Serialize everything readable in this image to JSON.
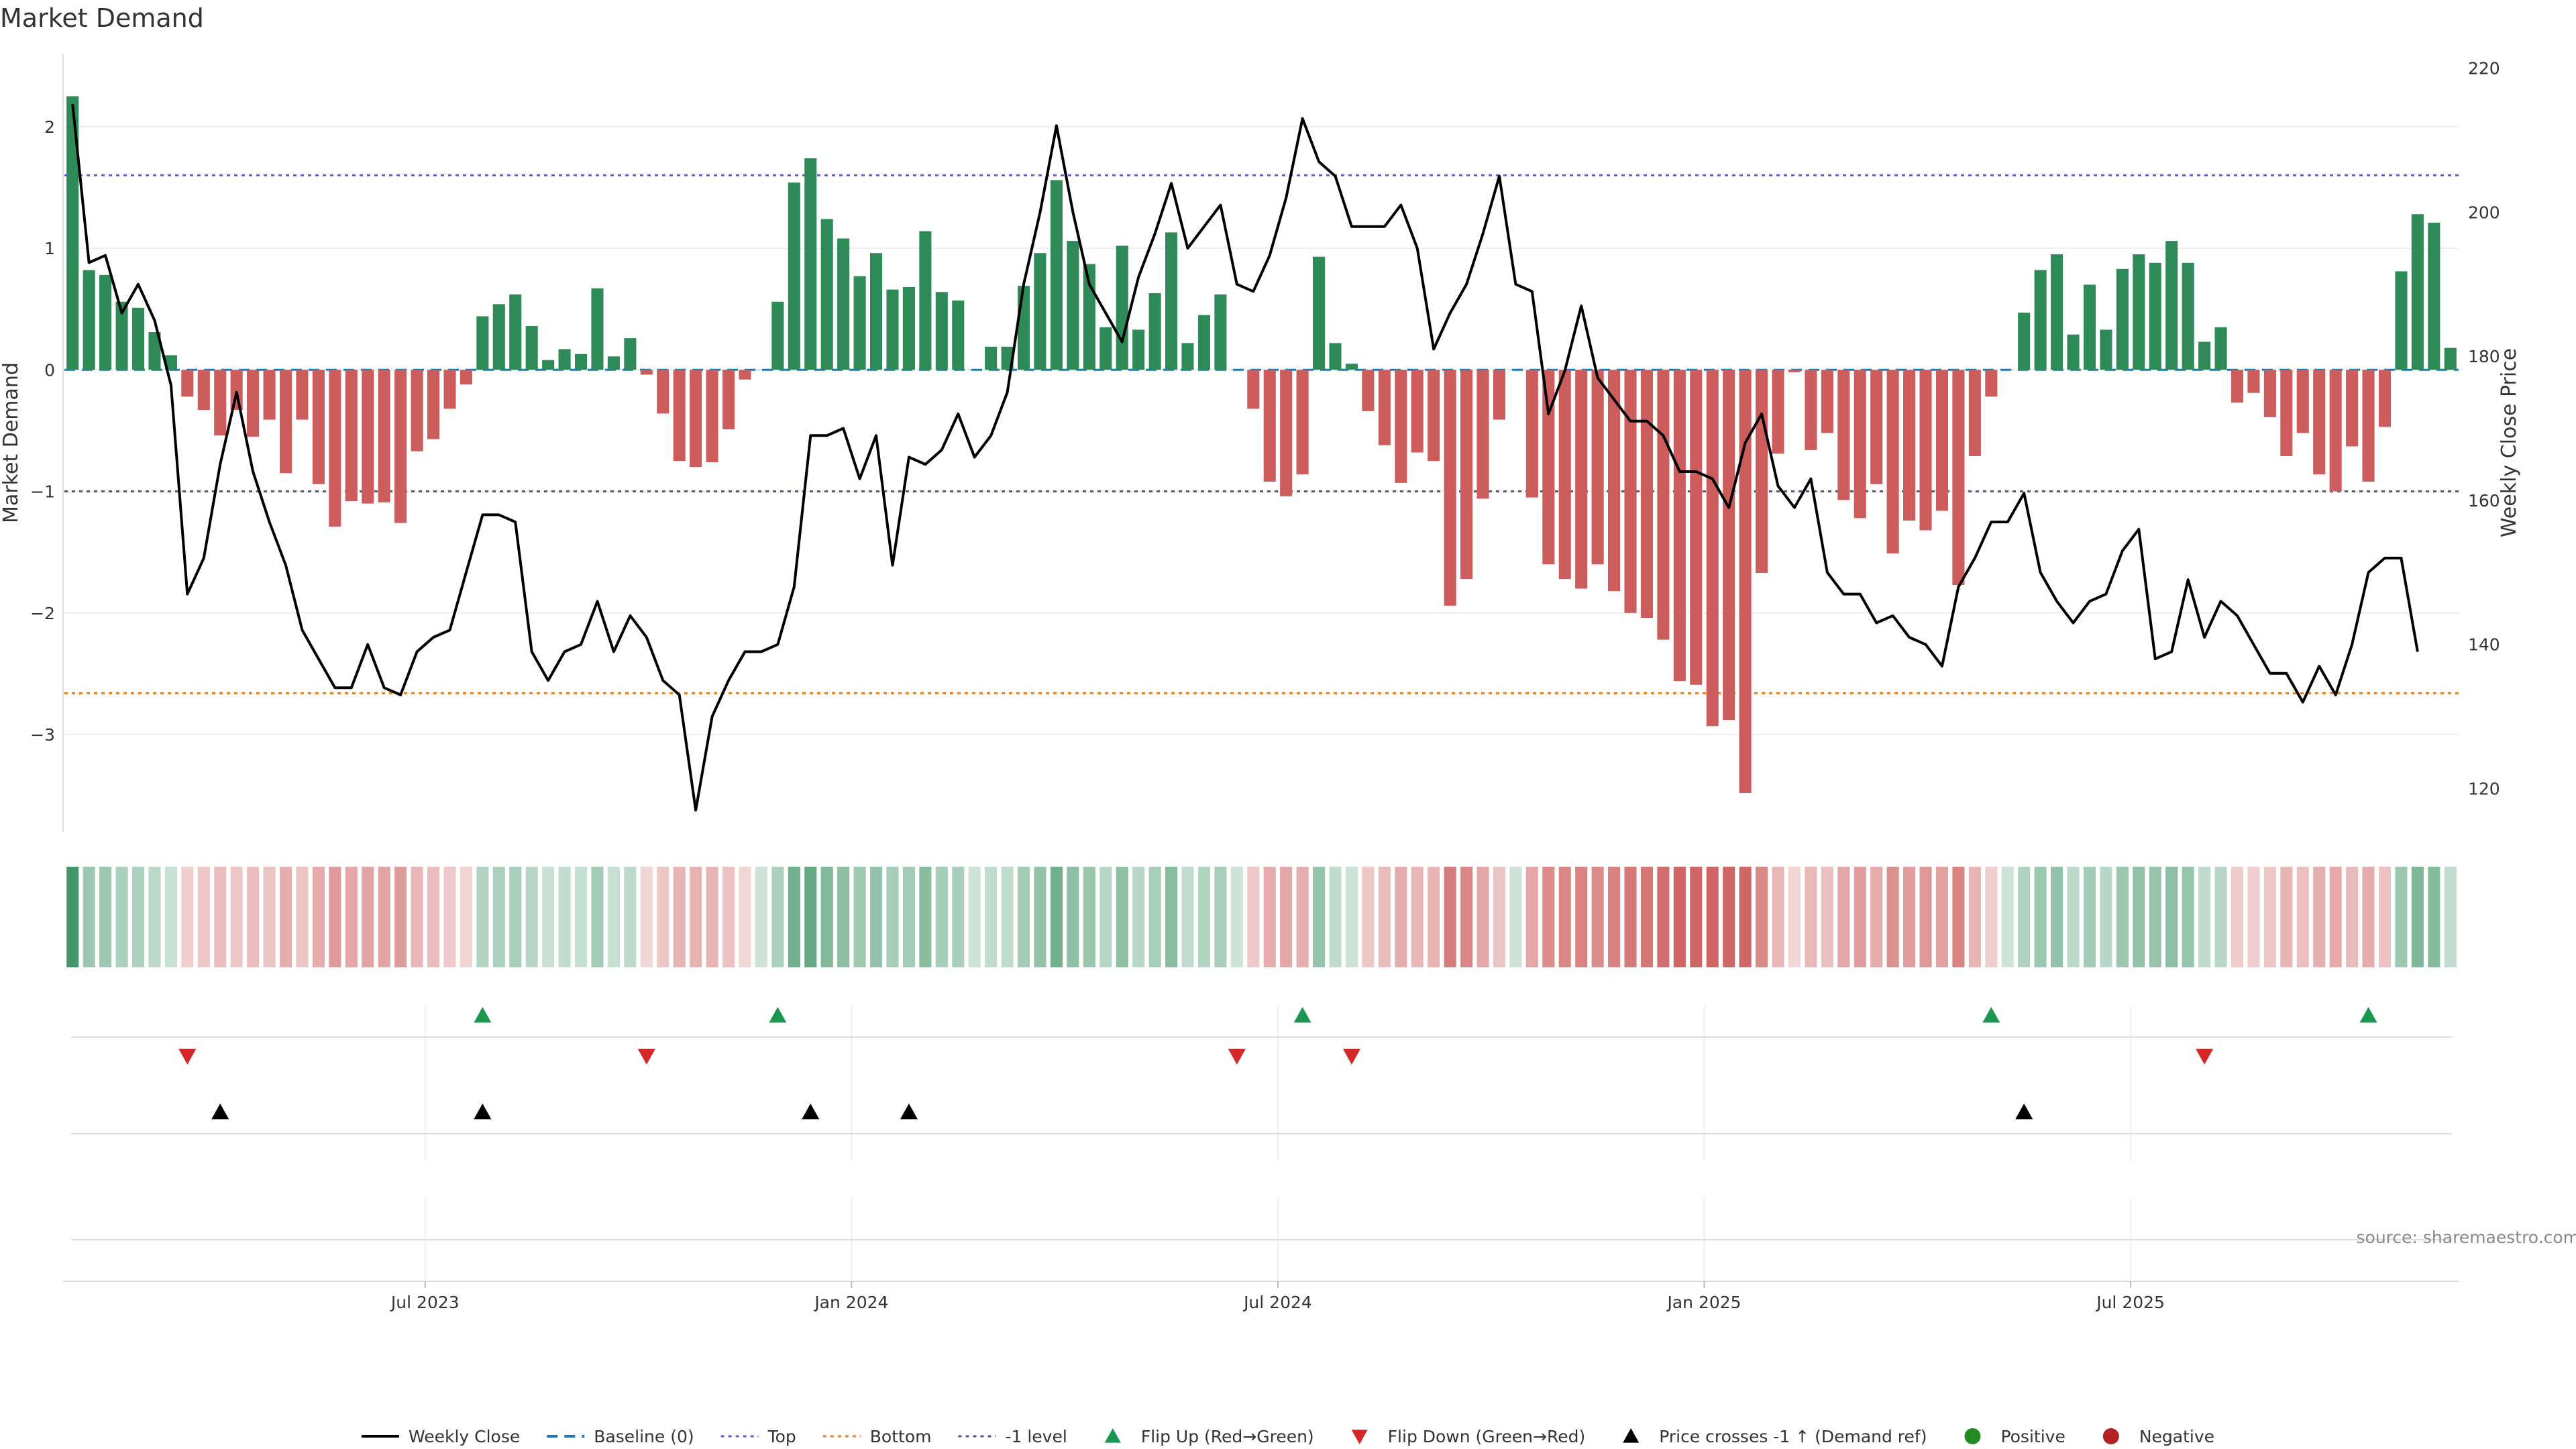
{
  "chart_data": {
    "type": "bar",
    "title": "Market Demand",
    "ylabel": "Market Demand",
    "y2label": "Weekly Close Price",
    "ylim": [
      -3.8,
      2.6
    ],
    "y2lim": [
      114,
      222
    ],
    "yticks": [
      {
        "v": 2,
        "label": "2"
      },
      {
        "v": 1,
        "label": "1"
      },
      {
        "v": 0,
        "label": "0"
      },
      {
        "v": -1,
        "label": "−1"
      },
      {
        "v": -2,
        "label": "−2"
      },
      {
        "v": -3,
        "label": "−3"
      }
    ],
    "y2ticks": [
      {
        "v": 220,
        "label": "220"
      },
      {
        "v": 200,
        "label": "200"
      },
      {
        "v": 180,
        "label": "180"
      },
      {
        "v": 160,
        "label": "160"
      },
      {
        "v": 140,
        "label": "140"
      },
      {
        "v": 120,
        "label": "120"
      }
    ],
    "xticks": [
      {
        "index": 22,
        "label": "Jul 2023"
      },
      {
        "index": 48,
        "label": "Jan 2024"
      },
      {
        "index": 74,
        "label": "Jul 2024"
      },
      {
        "index": 100,
        "label": "Jan 2025"
      },
      {
        "index": 126,
        "label": "Jul 2025"
      }
    ],
    "reference_lines": {
      "top": 1.6,
      "bottom": -2.66,
      "minus_one": -1,
      "baseline": 0
    },
    "colors": {
      "positive": "#2e8b57",
      "negative": "#cd5c5c",
      "price": "#000000",
      "top": "#6a5acd",
      "bottom": "#e67e22",
      "minus_one": "#555577",
      "baseline": "#1f77b4",
      "flip_up": "#1a9850",
      "flip_down": "#d62728",
      "cross": "#000000",
      "legend_positive": "#228b22",
      "legend_negative": "#b22222"
    },
    "series": [
      {
        "name": "Market Demand",
        "values": [
          2.25,
          0.82,
          0.78,
          0.56,
          0.51,
          0.31,
          0.12,
          -0.22,
          -0.33,
          -0.54,
          -0.33,
          -0.55,
          -0.41,
          -0.85,
          -0.41,
          -0.94,
          -1.29,
          -1.08,
          -1.1,
          -1.09,
          -1.26,
          -0.67,
          -0.57,
          -0.32,
          -0.12,
          0.44,
          0.54,
          0.62,
          0.36,
          0.08,
          0.17,
          0.13,
          0.67,
          0.11,
          0.26,
          -0.04,
          -0.36,
          -0.75,
          -0.8,
          -0.76,
          -0.49,
          -0.08,
          0.0,
          0.56,
          1.54,
          1.74,
          1.24,
          1.08,
          0.77,
          0.96,
          0.66,
          0.68,
          1.14,
          0.64,
          0.57,
          0.0,
          0.19,
          0.19,
          0.69,
          0.96,
          1.56,
          1.06,
          0.87,
          0.35,
          1.02,
          0.33,
          0.63,
          1.13,
          0.22,
          0.45,
          0.62,
          0.0,
          -0.32,
          -0.92,
          -1.04,
          -0.86,
          0.93,
          0.22,
          0.05,
          -0.34,
          -0.62,
          -0.93,
          -0.68,
          -0.75,
          -1.94,
          -1.72,
          -1.06,
          -0.41,
          0.0,
          -1.05,
          -1.6,
          -1.72,
          -1.8,
          -1.6,
          -1.82,
          -2.0,
          -2.04,
          -2.22,
          -2.56,
          -2.59,
          -2.93,
          -2.88,
          -3.48,
          -1.67,
          -0.69,
          -0.02,
          -0.66,
          -0.52,
          -1.07,
          -1.22,
          -0.94,
          -1.51,
          -1.24,
          -1.32,
          -1.16,
          -1.77,
          -0.71,
          -0.22,
          0.0,
          0.47,
          0.82,
          0.95,
          0.29,
          0.7,
          0.33,
          0.83,
          0.95,
          0.88,
          1.06,
          0.88,
          0.23,
          0.35,
          -0.27,
          -0.19,
          -0.39,
          -0.71,
          -0.52,
          -0.86,
          -1.0,
          -0.63,
          -0.92,
          -0.47,
          0.81,
          1.28,
          1.21,
          0.18
        ]
      },
      {
        "name": "Weekly Close",
        "values": [
          215,
          193,
          194,
          186,
          190,
          185,
          176,
          147,
          152,
          165,
          175,
          164,
          157,
          151,
          142,
          138,
          134,
          134,
          140,
          134,
          133,
          139,
          141,
          142,
          150,
          158,
          158,
          157,
          139,
          135,
          139,
          140,
          146,
          139,
          144,
          141,
          135,
          133,
          117,
          130,
          135,
          139,
          139,
          140,
          148,
          169,
          169,
          170,
          163,
          169,
          151,
          166,
          165,
          167,
          172,
          166,
          169,
          175,
          190,
          200,
          212,
          200,
          190,
          186,
          182,
          191,
          197,
          204,
          195,
          198,
          201,
          190,
          189,
          194,
          202,
          213,
          207,
          205,
          198,
          198,
          198,
          201,
          195,
          181,
          186,
          190,
          197,
          205,
          190,
          189,
          172,
          178,
          187,
          177,
          174,
          171,
          171,
          169,
          164,
          164,
          163,
          159,
          168,
          172,
          162,
          159,
          163,
          150,
          147,
          147,
          143,
          144,
          141,
          140,
          137,
          148,
          152,
          157,
          157,
          161,
          150,
          146,
          143,
          146,
          147,
          153,
          156,
          138,
          139,
          149,
          141,
          146,
          144,
          140,
          136,
          136,
          132,
          137,
          133,
          140,
          150,
          152,
          152,
          139
        ]
      }
    ],
    "flip_up_indices": [
      25,
      43,
      75,
      117,
      140
    ],
    "flip_down_indices": [
      7,
      35,
      71,
      78,
      130
    ],
    "price_cross_indices": [
      9,
      25,
      45,
      51,
      119
    ],
    "legend": [
      {
        "key": "price",
        "label": "Weekly Close"
      },
      {
        "key": "baseline",
        "label": "Baseline (0)"
      },
      {
        "key": "top",
        "label": "Top"
      },
      {
        "key": "bottom",
        "label": "Bottom"
      },
      {
        "key": "minus_one",
        "label": "-1 level"
      },
      {
        "key": "flip_up",
        "label": "Flip Up (Red→Green)"
      },
      {
        "key": "flip_down",
        "label": "Flip Down (Green→Red)"
      },
      {
        "key": "cross",
        "label": "Price crosses -1 ↑ (Demand ref)"
      },
      {
        "key": "positive",
        "label": "Positive"
      },
      {
        "key": "negative",
        "label": "Negative"
      }
    ],
    "legend_position": "bottom-center",
    "source_label": "source: sharemaestro.com"
  }
}
